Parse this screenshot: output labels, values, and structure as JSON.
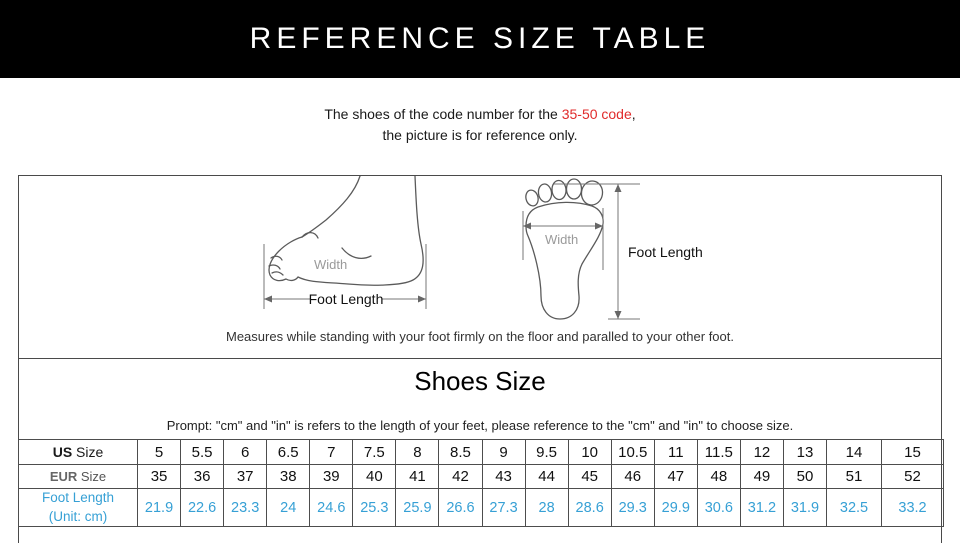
{
  "header": {
    "title": "REFERENCE SIZE TABLE"
  },
  "intro": {
    "line1_prefix": "The shoes of the code number for the ",
    "line1_highlight": "35-50 code",
    "line1_suffix": ",",
    "line2": "the picture is for reference only."
  },
  "diagrams": {
    "side_view": {
      "width_label": "Width",
      "length_label": "Foot Length"
    },
    "top_view": {
      "width_label": "Width",
      "length_label": "Foot Length"
    },
    "caption": "Measures while standing with your foot firmly on the floor and paralled to your other foot."
  },
  "size_section": {
    "title": "Shoes Size",
    "prompt": "Prompt: \"cm\" and \"in\" is refers to the length of your feet, please reference to the \"cm\" and \"in\" to choose size."
  },
  "size_table": {
    "rows": [
      {
        "label_strong": "US",
        "label_rest": " Size",
        "values": [
          "5",
          "5.5",
          "6",
          "6.5",
          "7",
          "7.5",
          "8",
          "8.5",
          "9",
          "9.5",
          "10",
          "10.5",
          "11",
          "11.5",
          "12",
          "13",
          "14",
          "15"
        ]
      },
      {
        "label_strong": "EUR",
        "label_rest": " Size",
        "values": [
          "35",
          "36",
          "37",
          "38",
          "39",
          "40",
          "41",
          "42",
          "43",
          "44",
          "45",
          "46",
          "47",
          "48",
          "49",
          "50",
          "51",
          "52"
        ]
      },
      {
        "label_line1": "Foot Length",
        "label_line2": "(Unit: cm)",
        "values": [
          "21.9",
          "22.6",
          "23.3",
          "24",
          "24.6",
          "25.3",
          "25.9",
          "26.6",
          "27.3",
          "28",
          "28.6",
          "29.3",
          "29.9",
          "30.6",
          "31.2",
          "31.9",
          "32.5",
          "33.2"
        ]
      }
    ]
  },
  "colors": {
    "header_bg": "#000000",
    "highlight_red": "#e02b2b",
    "table_blue": "#36a0d5",
    "border_gray": "#4a4a4a"
  }
}
